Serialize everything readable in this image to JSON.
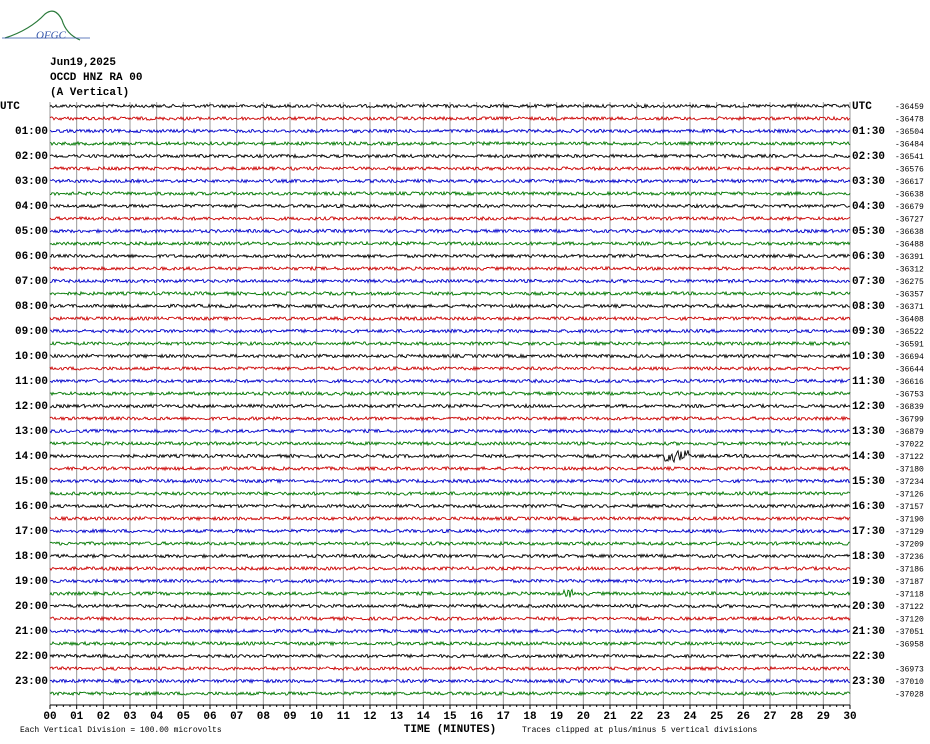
{
  "logo": "OFGC",
  "header": {
    "lines": [
      "Jun19,2025",
      "OCCD HNZ RA 00",
      "(A Vertical)"
    ]
  },
  "left_labels": [
    "UTC",
    "01:00",
    "02:00",
    "03:00",
    "04:00",
    "05:00",
    "06:00",
    "07:00",
    "08:00",
    "09:00",
    "10:00",
    "11:00",
    "12:00",
    "13:00",
    "14:00",
    "15:00",
    "16:00",
    "17:00",
    "18:00",
    "19:00",
    "20:00",
    "21:00",
    "22:00",
    "23:00"
  ],
  "right_labels": [
    "UTC",
    "01:30",
    "02:30",
    "03:30",
    "04:30",
    "05:30",
    "06:30",
    "07:30",
    "08:30",
    "09:30",
    "10:30",
    "11:30",
    "12:30",
    "13:30",
    "14:30",
    "15:30",
    "16:30",
    "17:30",
    "18:30",
    "19:30",
    "20:30",
    "21:30",
    "22:30",
    "23:30"
  ],
  "offsets": [
    "-36459",
    "-36478",
    "-36504",
    "-36484",
    "-36541",
    "-36576",
    "-36617",
    "-36638",
    "-36679",
    "-36727",
    "-36638",
    "-36488",
    "-36391",
    "-36312",
    "-36275",
    "-36357",
    "-36371",
    "-36408",
    "-36522",
    "-36591",
    "-36694",
    "-36644",
    "-36616",
    "-36753",
    "-36839",
    "-36799",
    "-36879",
    "-37022",
    "-37122",
    "-37180",
    "-37234",
    "-37126",
    "-37157",
    "-37190",
    "-37129",
    "-37209",
    "-37236",
    "-37186",
    "-37187",
    "-37118",
    "-37122",
    "-37120",
    "-37051",
    "-36958",
    null,
    "-36973",
    "-37010",
    "-37028"
  ],
  "x_ticks": [
    "00",
    "01",
    "02",
    "03",
    "04",
    "05",
    "06",
    "07",
    "08",
    "09",
    "10",
    "11",
    "12",
    "13",
    "14",
    "15",
    "16",
    "17",
    "18",
    "19",
    "20",
    "21",
    "22",
    "23",
    "24",
    "25",
    "26",
    "27",
    "28",
    "29",
    "30"
  ],
  "x_axis_label": "TIME (MINUTES)",
  "footer_left": "Each Vertical Division =  100.00 microvolts",
  "footer_right": "Traces clipped at plus/minus 5 vertical divisions"
}
